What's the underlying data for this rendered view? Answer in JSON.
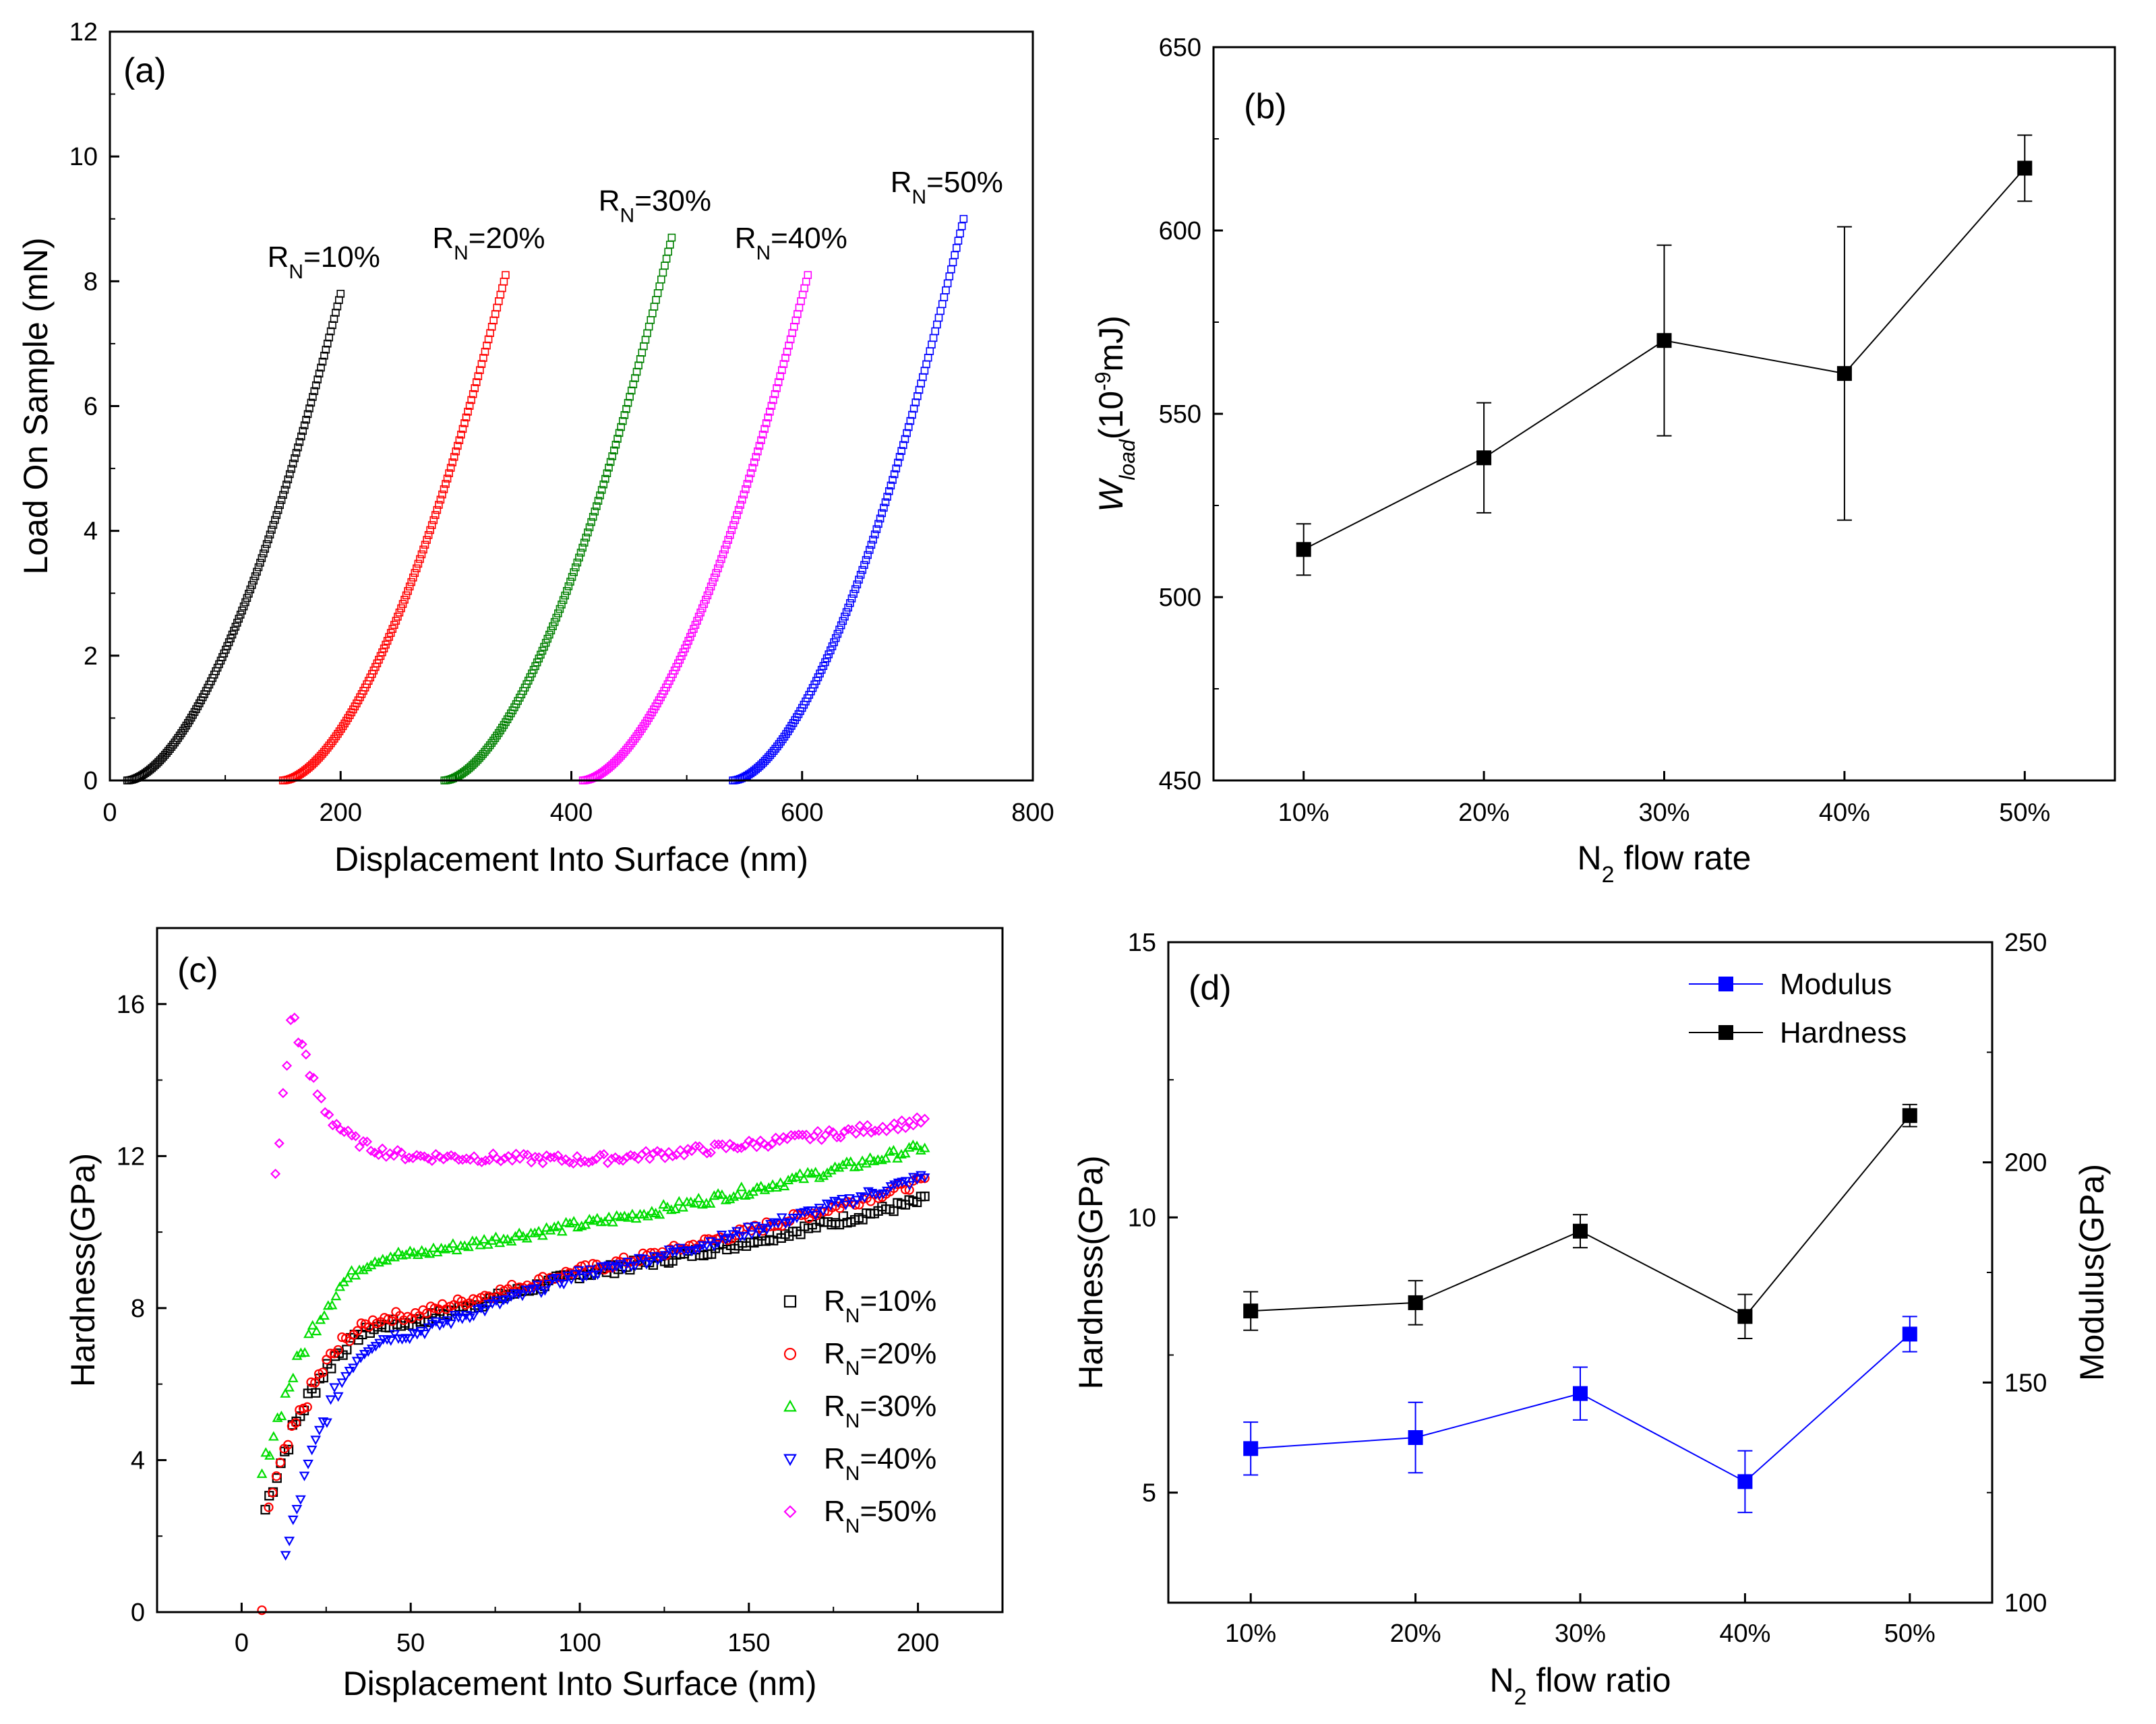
{
  "chart_data": [
    {
      "id": "a",
      "type": "scatter",
      "panel_label": "(a)",
      "xlabel": "Displacement Into Surface (nm)",
      "ylabel": "Load On Sample (mN)",
      "xlim": [
        0,
        800
      ],
      "ylim": [
        0,
        12
      ],
      "xticks": [
        0,
        200,
        400,
        600,
        800
      ],
      "yticks": [
        0,
        2,
        4,
        6,
        8,
        10,
        12
      ],
      "series": [
        {
          "name": "R_N=10%",
          "label": "R",
          "sub": "N",
          "suffix": "=10%",
          "color": "#000000",
          "x_start": 15,
          "x_end": 200,
          "y_end": 7.8,
          "exponent": 1.7
        },
        {
          "name": "R_N=20%",
          "label": "R",
          "sub": "N",
          "suffix": "=20%",
          "color": "#ff0000",
          "x_start": 150,
          "x_end": 343,
          "y_end": 8.1,
          "exponent": 1.7
        },
        {
          "name": "R_N=30%",
          "label": "R",
          "sub": "N",
          "suffix": "=30%",
          "color": "#008000",
          "x_start": 290,
          "x_end": 487,
          "y_end": 8.7,
          "exponent": 1.7
        },
        {
          "name": "R_N=40%",
          "label": "R",
          "sub": "N",
          "suffix": "=40%",
          "color": "#ff00ff",
          "x_start": 410,
          "x_end": 605,
          "y_end": 8.1,
          "exponent": 1.7
        },
        {
          "name": "R_N=50%",
          "label": "R",
          "sub": "N",
          "suffix": "=50%",
          "color": "#0000ff",
          "x_start": 540,
          "x_end": 740,
          "y_end": 9.0,
          "exponent": 1.7
        }
      ]
    },
    {
      "id": "b",
      "type": "line",
      "panel_label": "(b)",
      "xlabel_main": "N",
      "xlabel_sub": "2",
      "xlabel_rest": " flow rate",
      "ylabel_main": "W",
      "ylabel_sub": "load",
      "ylabel_open": "(10",
      "ylabel_sup": "-9",
      "ylabel_unit": "mJ)",
      "categories": [
        "10%",
        "20%",
        "30%",
        "40%",
        "50%"
      ],
      "values": [
        513,
        538,
        570,
        561,
        617
      ],
      "errors": [
        7,
        15,
        26,
        40,
        9
      ],
      "ylim": [
        450,
        650
      ],
      "yticks": [
        450,
        500,
        550,
        600,
        650
      ],
      "color": "#000000"
    },
    {
      "id": "c",
      "type": "scatter",
      "panel_label": "(c)",
      "xlabel": "Displacement Into Surface (nm)",
      "ylabel": "Hardness(GPa)",
      "xlim": [
        -25,
        225
      ],
      "ylim": [
        0,
        18
      ],
      "xticks": [
        0,
        50,
        100,
        150,
        200
      ],
      "yticks": [
        0,
        4,
        8,
        12,
        16
      ],
      "legend_position": "right",
      "series": [
        {
          "name": "R_N=10%",
          "label": "R",
          "sub": "N",
          "suffix": "=10%",
          "color": "#000000",
          "marker": "square",
          "start": 7,
          "start_value": 2.7,
          "hardness_50": 7.6,
          "hardness_100": 8.9,
          "hardness_200": 10.8
        },
        {
          "name": "R_N=20%",
          "label": "R",
          "sub": "N",
          "suffix": "=20%",
          "color": "#ff0000",
          "marker": "circle",
          "start": 8,
          "start_value": 2.8,
          "hardness_50": 7.8,
          "hardness_100": 9.0,
          "hardness_200": 11.3
        },
        {
          "name": "R_N=30%",
          "label": "R",
          "sub": "N",
          "suffix": "=30%",
          "color": "#00dd00",
          "marker": "triangle-up",
          "start": 6,
          "start_value": 3.6,
          "hardness_50": 9.4,
          "hardness_100": 10.2,
          "hardness_200": 12.2
        },
        {
          "name": "R_N=40%",
          "label": "R",
          "sub": "N",
          "suffix": "=40%",
          "color": "#0000ff",
          "marker": "triangle-down",
          "start": 13,
          "start_value": 1.4,
          "hardness_50": 7.3,
          "hardness_100": 8.9,
          "hardness_200": 11.4
        },
        {
          "name": "R_N=50%",
          "label": "R",
          "sub": "N",
          "suffix": "=50%",
          "color": "#ff00ff",
          "marker": "diamond",
          "start": 10,
          "start_value": 11.5,
          "peak": 15.9,
          "hardness_50": 12.0,
          "hardness_100": 11.9,
          "hardness_200": 12.9
        }
      ]
    },
    {
      "id": "d",
      "type": "line",
      "panel_label": "(d)",
      "xlabel_main": "N",
      "xlabel_sub": "2",
      "xlabel_rest": " flow ratio",
      "ylabel_left": "Hardness(GPa)",
      "ylabel_right": "Modulus(GPa)",
      "categories": [
        "10%",
        "20%",
        "30%",
        "40%",
        "50%"
      ],
      "ylim_left": [
        3,
        15
      ],
      "yticks_left": [
        5,
        10,
        15
      ],
      "ylim_right": [
        100,
        250
      ],
      "yticks_right": [
        100,
        150,
        200,
        250
      ],
      "series": [
        {
          "name": "Modulus",
          "axis": "right",
          "color": "#0000ff",
          "values": [
            135,
            137.5,
            147.5,
            127.5,
            161
          ],
          "errors": [
            6,
            8,
            6,
            7,
            4
          ]
        },
        {
          "name": "Hardness",
          "axis": "left",
          "color": "#000000",
          "values": [
            8.3,
            8.45,
            9.75,
            8.2,
            11.85
          ],
          "errors": [
            0.35,
            0.4,
            0.3,
            0.4,
            0.2
          ]
        }
      ]
    }
  ]
}
